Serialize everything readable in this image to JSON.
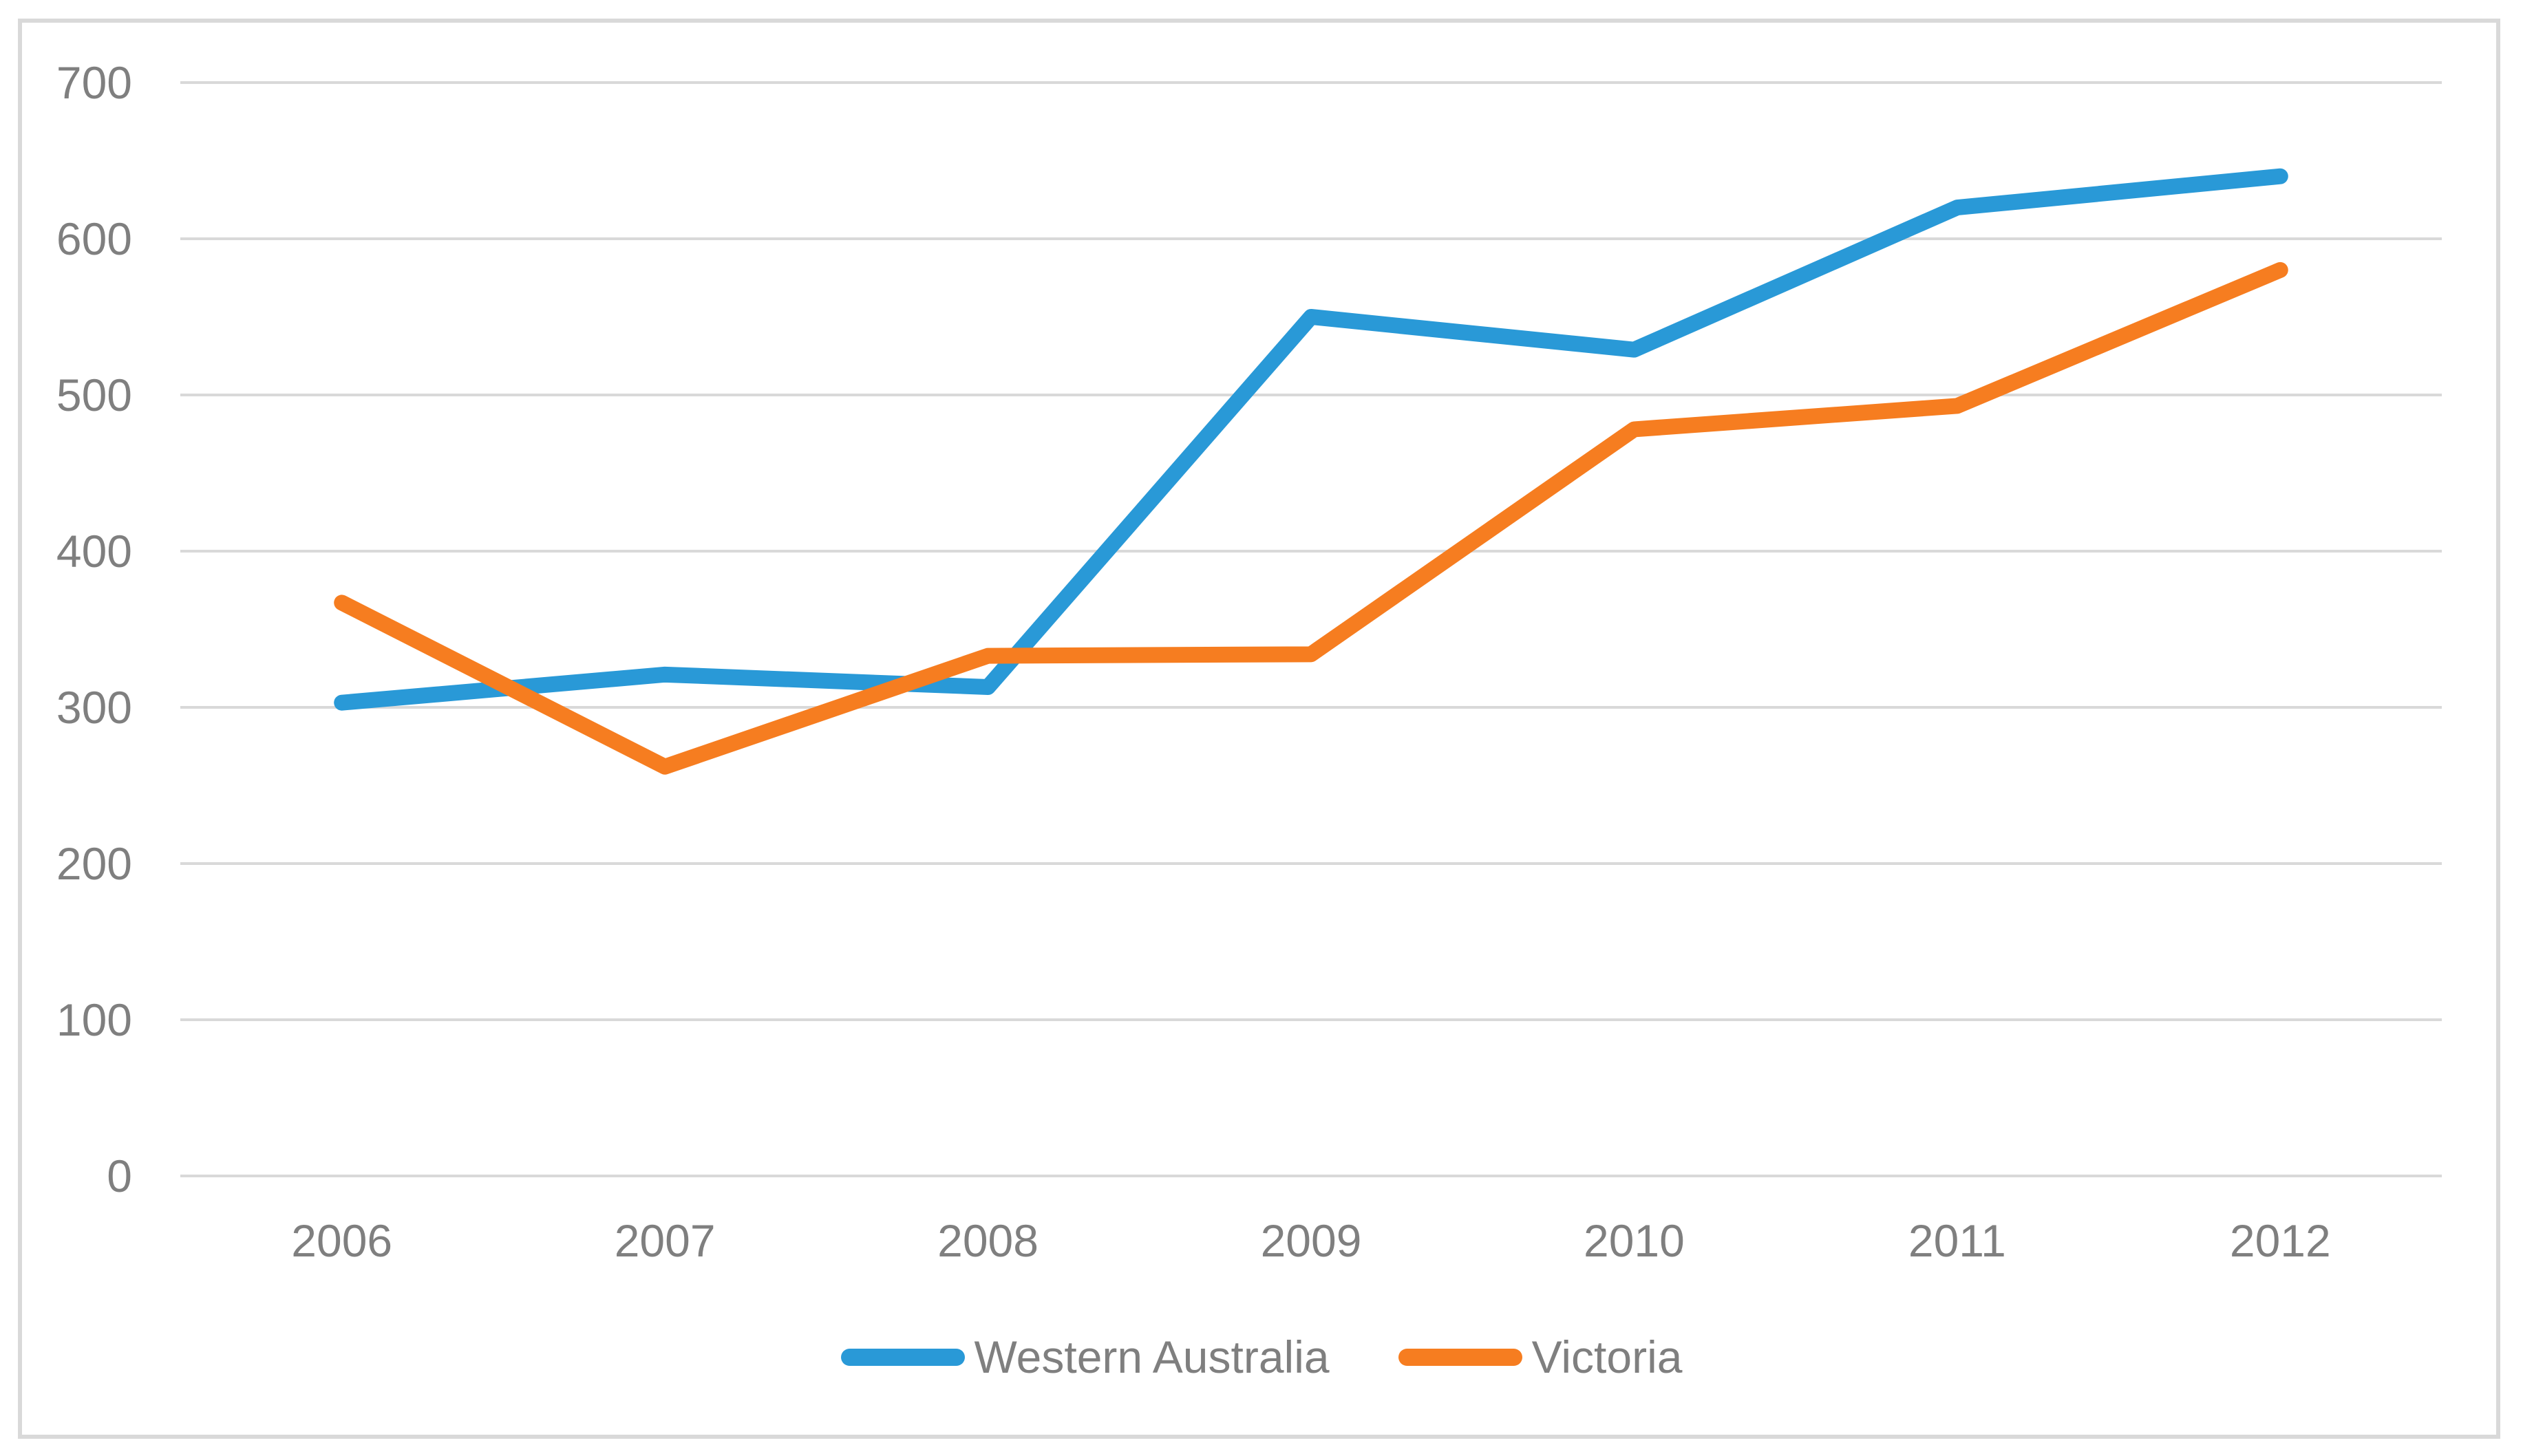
{
  "chart_data": {
    "type": "line",
    "title": "",
    "xlabel": "",
    "ylabel": "",
    "categories": [
      "2006",
      "2007",
      "2008",
      "2009",
      "2010",
      "2011",
      "2012"
    ],
    "series": [
      {
        "name": "Western Australia",
        "color": "#2999D7",
        "values": [
          303,
          321,
          313,
          550,
          529,
          620,
          640
        ]
      },
      {
        "name": "Victoria",
        "color": "#F67D20",
        "values": [
          367,
          262,
          333,
          334,
          478,
          493,
          580
        ]
      }
    ],
    "ylim": [
      0,
      700
    ],
    "yticks": [
      0,
      100,
      200,
      300,
      400,
      500,
      600,
      700
    ],
    "grid": "horizontal-only",
    "legend_position": "bottom-center",
    "line_style": "thick-rounded",
    "markers": "none"
  },
  "colors": {
    "background": "#FFFFFF",
    "gridline": "#D9D9D9",
    "frame_border": "#D9D9D9",
    "axis_text": "#7F7F7F",
    "legend_text": "#7F7F7F"
  }
}
